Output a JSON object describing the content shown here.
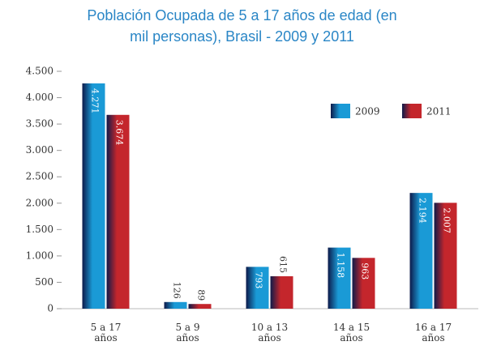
{
  "chart_data": {
    "type": "bar",
    "title": "Población Ocupada de 5 a 17 años de edad (en mil personas), Brasil - 2009 y 2011",
    "categories": [
      "5 a 17 años",
      "5 a 9 años",
      "10 a 13 años",
      "14 a 15 años",
      "16 a 17 años"
    ],
    "series": [
      {
        "name": "2009",
        "color": "#1a9ad6",
        "values": [
          4271,
          126,
          793,
          1158,
          2194
        ],
        "value_labels": [
          "4.271",
          "126",
          "793",
          "1.158",
          "2.194"
        ]
      },
      {
        "name": "2011",
        "color": "#c4262c",
        "values": [
          3674,
          89,
          615,
          963,
          2007
        ],
        "value_labels": [
          "3.674",
          "89",
          "615",
          "963",
          "2.007"
        ]
      }
    ],
    "ylim": [
      0,
      4500
    ],
    "yticks": [
      0,
      500,
      {
        "value": 1000,
        "label": "1.000"
      },
      {
        "value": 1500,
        "label": "1.500"
      },
      {
        "value": 2000,
        "label": "2.000"
      },
      {
        "value": 2500,
        "label": "2.500"
      },
      {
        "value": 3000,
        "label": "3.000"
      },
      {
        "value": 3500,
        "label": "3.500"
      },
      {
        "value": 4000,
        "label": "4.000"
      },
      {
        "value": 4500,
        "label": "4.500"
      }
    ],
    "legend": "upper right"
  }
}
